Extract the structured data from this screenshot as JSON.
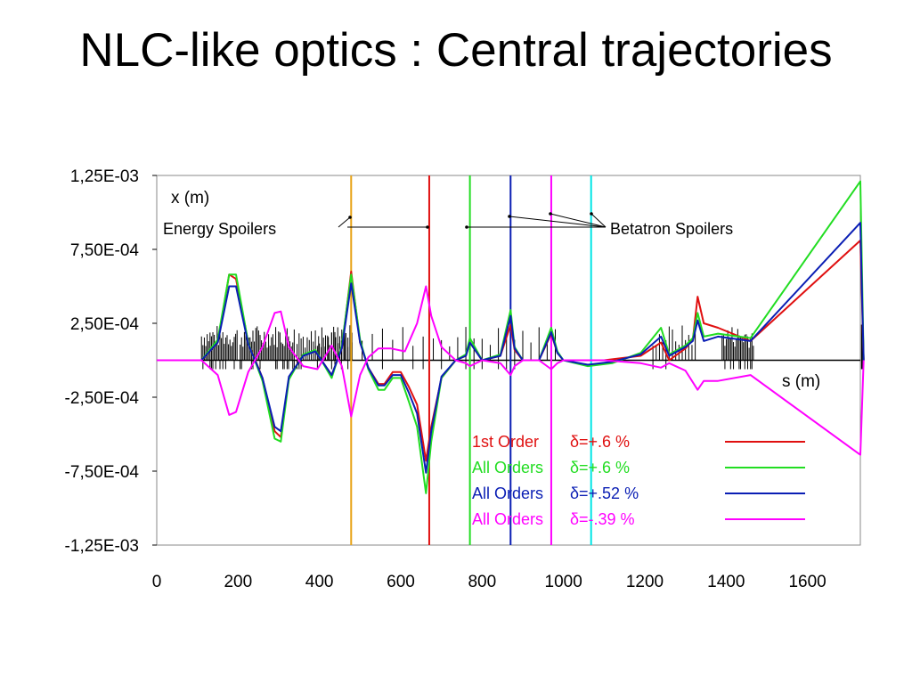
{
  "slide": {
    "title": "NLC-like optics : Central trajectories"
  },
  "chart_data": {
    "type": "line",
    "title": "",
    "xlabel": "s (m)",
    "ylabel": "x (m)",
    "xlim": [
      0,
      1730
    ],
    "ylim": [
      -0.00125,
      0.00125
    ],
    "x_ticks": [
      0,
      200,
      400,
      600,
      800,
      1000,
      1200,
      1400,
      1600
    ],
    "y_ticks": [
      {
        "value": 0.00125,
        "label": "1,25E-03"
      },
      {
        "value": 0.00075,
        "label": "7,50E-04"
      },
      {
        "value": 0.00025,
        "label": "2,50E-04"
      },
      {
        "value": -0.00025,
        "label": "-2,50E-04"
      },
      {
        "value": -0.00075,
        "label": "-7,50E-04"
      },
      {
        "value": -0.00125,
        "label": "-1,25E-03"
      }
    ],
    "grid": false,
    "legend_position": "bottom-right",
    "annotations": {
      "energy_spoilers": "Energy Spoilers",
      "betatron_spoilers": "Betatron Spoilers"
    },
    "spoiler_lines": [
      {
        "group": "energy",
        "s": 478,
        "color": "#E8A317"
      },
      {
        "group": "energy",
        "s": 670,
        "color": "#E01010"
      },
      {
        "group": "betatron",
        "s": 770,
        "color": "#22DD22"
      },
      {
        "group": "betatron",
        "s": 870,
        "color": "#0A1EB4"
      },
      {
        "group": "betatron",
        "s": 970,
        "color": "#FF00FF"
      },
      {
        "group": "betatron",
        "s": 1068,
        "color": "#00E5E5"
      }
    ],
    "series": [
      {
        "name": "1st Order",
        "delta": "δ=+.6 %",
        "color": "#E01010",
        "points": [
          [
            0,
            0
          ],
          [
            110,
            0
          ],
          [
            150,
            0.00012
          ],
          [
            178,
            0.00058
          ],
          [
            195,
            0.00055
          ],
          [
            225,
            0.00012
          ],
          [
            260,
            -0.00012
          ],
          [
            290,
            -0.00048
          ],
          [
            305,
            -0.00052
          ],
          [
            325,
            -0.00012
          ],
          [
            360,
            4e-05
          ],
          [
            390,
            6e-05
          ],
          [
            430,
            -0.0001
          ],
          [
            455,
            8e-05
          ],
          [
            478,
            0.0006
          ],
          [
            500,
            0.00012
          ],
          [
            520,
            -5e-05
          ],
          [
            545,
            -0.00016
          ],
          [
            560,
            -0.00016
          ],
          [
            580,
            -8e-05
          ],
          [
            600,
            -8e-05
          ],
          [
            620,
            -0.00018
          ],
          [
            640,
            -0.0003
          ],
          [
            662,
            -0.00068
          ],
          [
            675,
            -0.00045
          ],
          [
            700,
            -0.00012
          ],
          [
            735,
            0
          ],
          [
            760,
            3e-05
          ],
          [
            770,
            0.00012
          ],
          [
            800,
            0
          ],
          [
            845,
            3e-05
          ],
          [
            870,
            0.00024
          ],
          [
            880,
            7e-05
          ],
          [
            900,
            0
          ],
          [
            940,
            0
          ],
          [
            970,
            0.00018
          ],
          [
            985,
            5e-05
          ],
          [
            1000,
            0
          ],
          [
            1100,
            0
          ],
          [
            1190,
            3e-05
          ],
          [
            1240,
            0.00012
          ],
          [
            1260,
            0
          ],
          [
            1300,
            8e-05
          ],
          [
            1318,
            0.00014
          ],
          [
            1330,
            0.00043
          ],
          [
            1345,
            0.00025
          ],
          [
            1380,
            0.00022
          ],
          [
            1460,
            0.00013
          ],
          [
            1730,
            0.00081
          ],
          [
            1738,
            0
          ]
        ]
      },
      {
        "name": "All Orders",
        "delta": "δ=+.6 %",
        "color": "#22DD22",
        "points": [
          [
            0,
            0
          ],
          [
            110,
            0
          ],
          [
            150,
            0.00014
          ],
          [
            178,
            0.00058
          ],
          [
            195,
            0.00058
          ],
          [
            225,
            0.00012
          ],
          [
            260,
            -0.00014
          ],
          [
            290,
            -0.00053
          ],
          [
            305,
            -0.00055
          ],
          [
            325,
            -0.00013
          ],
          [
            360,
            4e-05
          ],
          [
            390,
            7e-05
          ],
          [
            430,
            -0.00012
          ],
          [
            455,
            0.0001
          ],
          [
            478,
            0.00058
          ],
          [
            500,
            0.00014
          ],
          [
            520,
            -6e-05
          ],
          [
            545,
            -0.0002
          ],
          [
            560,
            -0.0002
          ],
          [
            580,
            -0.00012
          ],
          [
            600,
            -0.00012
          ],
          [
            620,
            -0.00028
          ],
          [
            640,
            -0.00045
          ],
          [
            662,
            -0.0009
          ],
          [
            675,
            -0.00055
          ],
          [
            700,
            -0.00012
          ],
          [
            735,
            0
          ],
          [
            760,
            4e-05
          ],
          [
            770,
            0.00015
          ],
          [
            800,
            0
          ],
          [
            845,
            4e-05
          ],
          [
            870,
            0.00034
          ],
          [
            880,
            9e-05
          ],
          [
            900,
            0
          ],
          [
            940,
            0
          ],
          [
            970,
            0.00022
          ],
          [
            985,
            6e-05
          ],
          [
            1000,
            0
          ],
          [
            1060,
            -4e-05
          ],
          [
            1120,
            -2e-05
          ],
          [
            1190,
            5e-05
          ],
          [
            1240,
            0.00022
          ],
          [
            1260,
            4e-05
          ],
          [
            1300,
            0.0001
          ],
          [
            1318,
            0.00015
          ],
          [
            1330,
            0.00032
          ],
          [
            1345,
            0.00016
          ],
          [
            1380,
            0.00018
          ],
          [
            1460,
            0.00015
          ],
          [
            1730,
            0.00121
          ],
          [
            1738,
            0
          ]
        ]
      },
      {
        "name": "All Orders",
        "delta": "δ=+.52 %",
        "color": "#0A1EB4",
        "points": [
          [
            0,
            0
          ],
          [
            110,
            0
          ],
          [
            150,
            0.00012
          ],
          [
            178,
            0.0005
          ],
          [
            195,
            0.0005
          ],
          [
            225,
            0.00011
          ],
          [
            260,
            -0.00012
          ],
          [
            290,
            -0.00045
          ],
          [
            305,
            -0.00048
          ],
          [
            325,
            -0.00011
          ],
          [
            360,
            3e-05
          ],
          [
            390,
            6e-05
          ],
          [
            430,
            -0.0001
          ],
          [
            455,
            8e-05
          ],
          [
            478,
            0.00052
          ],
          [
            500,
            0.00012
          ],
          [
            520,
            -5e-05
          ],
          [
            545,
            -0.00017
          ],
          [
            560,
            -0.00017
          ],
          [
            580,
            -0.0001
          ],
          [
            600,
            -0.0001
          ],
          [
            620,
            -0.00022
          ],
          [
            640,
            -0.00036
          ],
          [
            662,
            -0.00076
          ],
          [
            675,
            -0.00048
          ],
          [
            700,
            -0.00011
          ],
          [
            735,
            0
          ],
          [
            760,
            3e-05
          ],
          [
            770,
            0.00012
          ],
          [
            800,
            0
          ],
          [
            845,
            3e-05
          ],
          [
            870,
            0.0003
          ],
          [
            880,
            8e-05
          ],
          [
            900,
            0
          ],
          [
            940,
            0
          ],
          [
            970,
            0.00019
          ],
          [
            985,
            5e-05
          ],
          [
            1000,
            0
          ],
          [
            1060,
            -3e-05
          ],
          [
            1120,
            -1e-05
          ],
          [
            1190,
            4e-05
          ],
          [
            1240,
            0.00016
          ],
          [
            1260,
            3e-05
          ],
          [
            1300,
            9e-05
          ],
          [
            1318,
            0.00013
          ],
          [
            1330,
            0.00027
          ],
          [
            1345,
            0.00013
          ],
          [
            1380,
            0.00016
          ],
          [
            1460,
            0.00013
          ],
          [
            1730,
            0.00093
          ],
          [
            1738,
            0
          ]
        ]
      },
      {
        "name": "All Orders",
        "delta": "δ=-.39 %",
        "color": "#FF00FF",
        "points": [
          [
            0,
            0
          ],
          [
            110,
            0
          ],
          [
            150,
            -0.0001
          ],
          [
            178,
            -0.00037
          ],
          [
            195,
            -0.00035
          ],
          [
            225,
            -8e-05
          ],
          [
            260,
            9e-05
          ],
          [
            290,
            0.00032
          ],
          [
            305,
            0.00033
          ],
          [
            325,
            9e-05
          ],
          [
            360,
            -4e-05
          ],
          [
            395,
            -6e-05
          ],
          [
            430,
            0.0001
          ],
          [
            455,
            -4e-05
          ],
          [
            478,
            -0.00038
          ],
          [
            500,
            -0.0001
          ],
          [
            520,
            2e-05
          ],
          [
            545,
            8e-05
          ],
          [
            575,
            8e-05
          ],
          [
            610,
            6e-05
          ],
          [
            640,
            0.00025
          ],
          [
            662,
            0.0005
          ],
          [
            675,
            0.0003
          ],
          [
            700,
            9e-05
          ],
          [
            735,
            0
          ],
          [
            760,
            -2e-05
          ],
          [
            770,
            -4e-05
          ],
          [
            800,
            0
          ],
          [
            845,
            -2e-05
          ],
          [
            870,
            -0.0001
          ],
          [
            880,
            -4e-05
          ],
          [
            900,
            0
          ],
          [
            940,
            0
          ],
          [
            970,
            -6e-05
          ],
          [
            985,
            -2e-05
          ],
          [
            1000,
            0
          ],
          [
            1100,
            0
          ],
          [
            1190,
            -2e-05
          ],
          [
            1240,
            -5e-05
          ],
          [
            1260,
            -2e-05
          ],
          [
            1300,
            -7e-05
          ],
          [
            1330,
            -0.0002
          ],
          [
            1345,
            -0.00014
          ],
          [
            1380,
            -0.00014
          ],
          [
            1460,
            -0.0001
          ],
          [
            1730,
            -0.00064
          ],
          [
            1738,
            0
          ]
        ]
      }
    ]
  }
}
